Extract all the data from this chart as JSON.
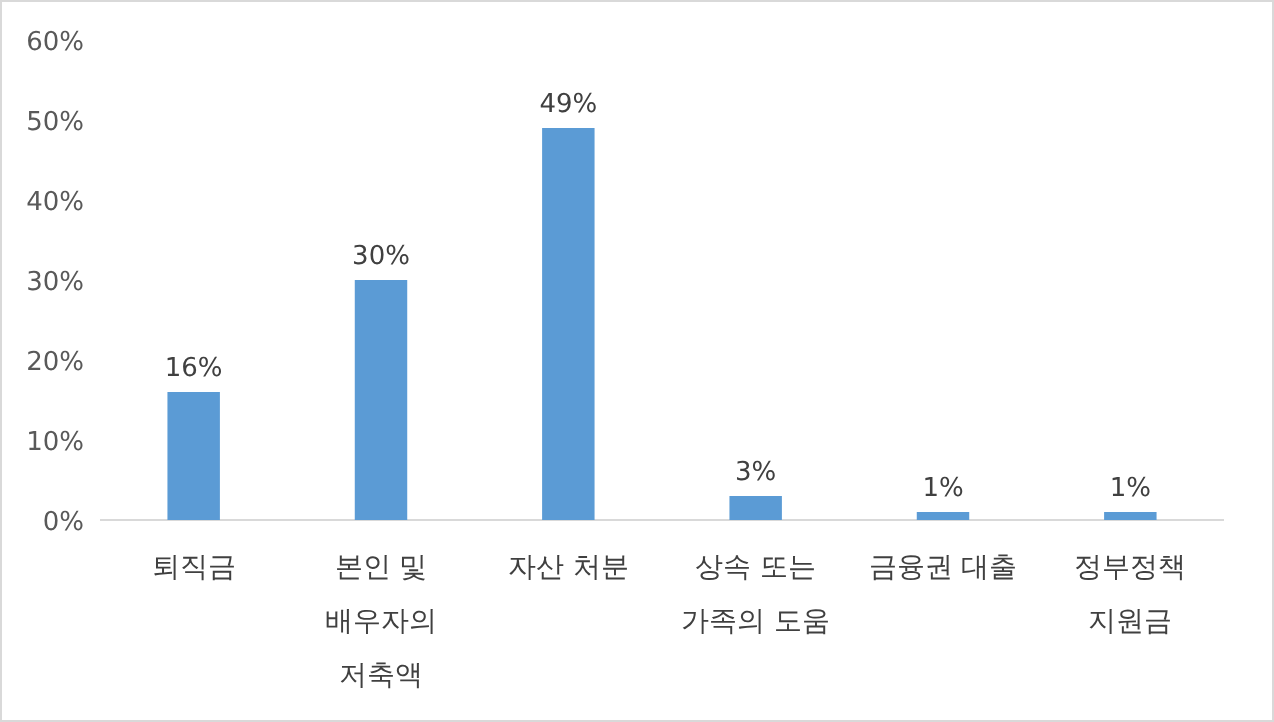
{
  "chart_data": {
    "type": "bar",
    "categories": [
      "퇴직금",
      "본인 및 배우자의 저축액",
      "자산 처분",
      "상속 또는 가족의 도움",
      "금융권 대출",
      "정부정책 지원금"
    ],
    "values": [
      16,
      30,
      49,
      3,
      1,
      1
    ],
    "value_labels": [
      "16%",
      "30%",
      "49%",
      "3%",
      "1%",
      "1%"
    ],
    "color": "#5b9bd5",
    "ylim": [
      0,
      60
    ],
    "yticks": [
      {
        "value": 0,
        "label": "0%"
      },
      {
        "value": 10,
        "label": "10%"
      },
      {
        "value": 20,
        "label": "20%"
      },
      {
        "value": 30,
        "label": "30%"
      },
      {
        "value": 40,
        "label": "40%"
      },
      {
        "value": 50,
        "label": "50%"
      },
      {
        "value": 60,
        "label": "60%"
      }
    ],
    "grid": false
  }
}
